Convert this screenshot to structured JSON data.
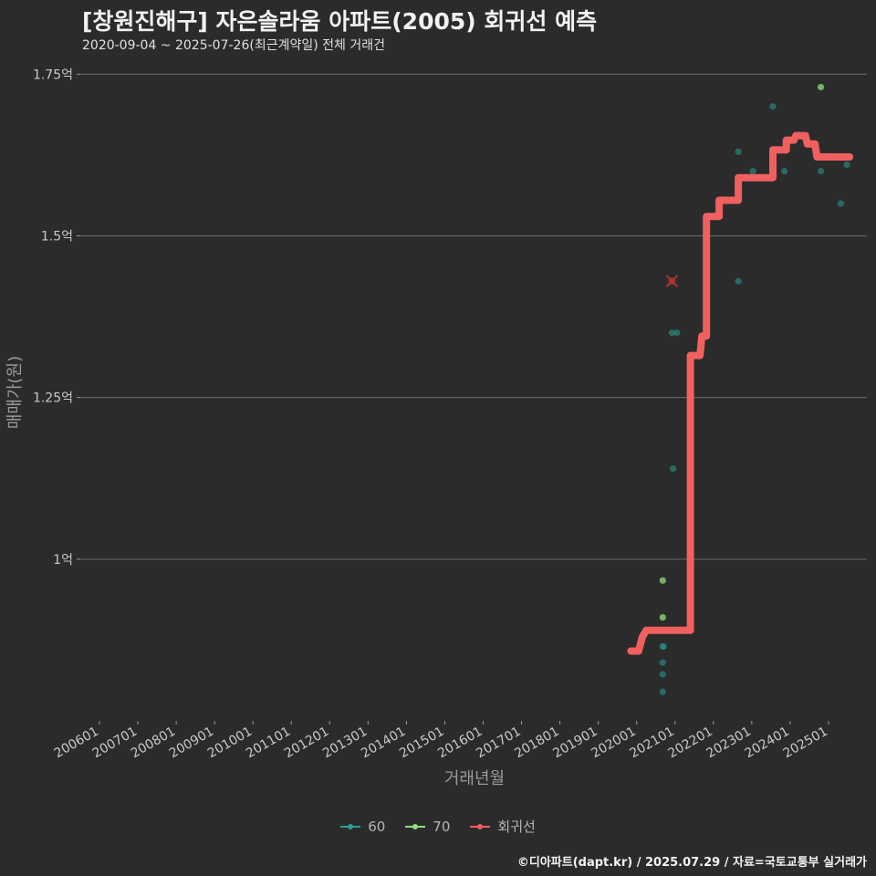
{
  "header": {
    "title": "[창원진해구] 자은솔라움 아파트(2005) 회귀선 예측",
    "subtitle": "2020-09-04 ~ 2025-07-26(최근계약일) 전체 거래건"
  },
  "footer": {
    "credit": "©디아파트(dapt.kr) / 2025.07.29 / 자료=국토교통부 실거래가"
  },
  "colors": {
    "s60": "#2a9d8f",
    "s70": "#8ee07a",
    "reg": "#f0605f",
    "outlier": "#b53535"
  },
  "chart_data": {
    "type": "scatter",
    "title": "[창원진해구] 자은솔라움 아파트(2005) 회귀선 예측",
    "xlabel": "거래년월",
    "ylabel": "매매가(원)",
    "ylim": [
      0.75,
      1.78
    ],
    "xlim": [
      2005.5,
      2026.0
    ],
    "x_ticks": [
      {
        "label": "200601",
        "x": 2006.0
      },
      {
        "label": "200701",
        "x": 2007.0
      },
      {
        "label": "200801",
        "x": 2008.0
      },
      {
        "label": "200901",
        "x": 2009.0
      },
      {
        "label": "201001",
        "x": 2010.0
      },
      {
        "label": "201101",
        "x": 2011.0
      },
      {
        "label": "201201",
        "x": 2012.0
      },
      {
        "label": "201301",
        "x": 2013.0
      },
      {
        "label": "201401",
        "x": 2014.0
      },
      {
        "label": "201501",
        "x": 2015.0
      },
      {
        "label": "201601",
        "x": 2016.0
      },
      {
        "label": "201701",
        "x": 2017.0
      },
      {
        "label": "201801",
        "x": 2018.0
      },
      {
        "label": "201901",
        "x": 2019.0
      },
      {
        "label": "202001",
        "x": 2020.0
      },
      {
        "label": "202101",
        "x": 2021.0
      },
      {
        "label": "202201",
        "x": 2022.0
      },
      {
        "label": "202301",
        "x": 2023.0
      },
      {
        "label": "202401",
        "x": 2024.0
      },
      {
        "label": "202501",
        "x": 2025.0
      }
    ],
    "y_ticks": [
      {
        "label": "1억",
        "value": 1.0
      },
      {
        "label": "1.25억",
        "value": 1.25
      },
      {
        "label": "1.5억",
        "value": 1.5
      },
      {
        "label": "1.75억",
        "value": 1.75
      }
    ],
    "legend": [
      "60",
      "70",
      "회귀선"
    ],
    "series": [
      {
        "name": "60",
        "points": [
          {
            "x": 2020.68,
            "y": 0.865
          },
          {
            "x": 2020.7,
            "y": 0.865
          },
          {
            "x": 2020.68,
            "y": 0.84
          },
          {
            "x": 2020.68,
            "y": 0.822
          },
          {
            "x": 2020.68,
            "y": 0.795
          },
          {
            "x": 2020.92,
            "y": 1.35
          },
          {
            "x": 2021.05,
            "y": 1.35
          },
          {
            "x": 2020.95,
            "y": 1.14
          },
          {
            "x": 2022.65,
            "y": 1.43
          },
          {
            "x": 2022.65,
            "y": 1.63
          },
          {
            "x": 2023.03,
            "y": 1.6
          },
          {
            "x": 2023.55,
            "y": 1.7
          },
          {
            "x": 2023.85,
            "y": 1.6
          },
          {
            "x": 2024.8,
            "y": 1.6
          },
          {
            "x": 2025.32,
            "y": 1.55
          },
          {
            "x": 2025.48,
            "y": 1.61
          }
        ]
      },
      {
        "name": "70",
        "points": [
          {
            "x": 2020.68,
            "y": 0.967
          },
          {
            "x": 2020.68,
            "y": 0.91
          },
          {
            "x": 2024.8,
            "y": 1.73
          }
        ]
      }
    ],
    "outliers": [
      {
        "x": 2020.92,
        "y": 1.43
      }
    ],
    "regression": [
      [
        2019.85,
        0.858
      ],
      [
        2020.05,
        0.858
      ],
      [
        2020.15,
        0.88
      ],
      [
        2020.25,
        0.89
      ],
      [
        2021.4,
        0.89
      ],
      [
        2021.4,
        1.315
      ],
      [
        2021.65,
        1.315
      ],
      [
        2021.7,
        1.345
      ],
      [
        2021.82,
        1.345
      ],
      [
        2021.82,
        1.53
      ],
      [
        2022.15,
        1.53
      ],
      [
        2022.15,
        1.555
      ],
      [
        2022.65,
        1.555
      ],
      [
        2022.65,
        1.59
      ],
      [
        2023.2,
        1.59
      ],
      [
        2023.2,
        1.59
      ],
      [
        2023.55,
        1.59
      ],
      [
        2023.55,
        1.633
      ],
      [
        2023.9,
        1.633
      ],
      [
        2023.9,
        1.648
      ],
      [
        2024.1,
        1.648
      ],
      [
        2024.15,
        1.655
      ],
      [
        2024.4,
        1.655
      ],
      [
        2024.45,
        1.642
      ],
      [
        2024.65,
        1.642
      ],
      [
        2024.7,
        1.622
      ],
      [
        2025.55,
        1.622
      ]
    ]
  }
}
